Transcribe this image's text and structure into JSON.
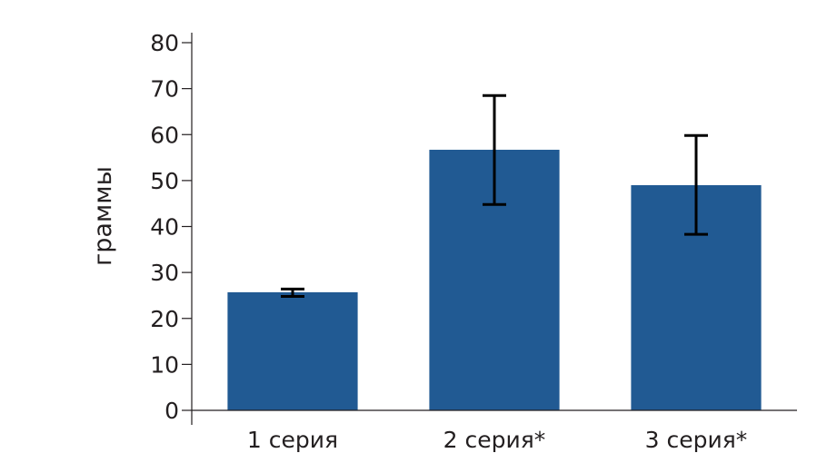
{
  "chart_data": {
    "type": "bar",
    "title": "",
    "xlabel": "",
    "ylabel": "граммы",
    "ylim": [
      0,
      80
    ],
    "yticks": [
      0,
      10,
      20,
      30,
      40,
      50,
      60,
      70,
      80
    ],
    "grid": false,
    "categories": [
      "1 серия",
      "2 серия*",
      "3 серия*"
    ],
    "values": [
      25.7,
      56.7,
      49.0
    ],
    "error_low": [
      24.8,
      44.8,
      38.3
    ],
    "error_high": [
      26.4,
      68.5,
      59.8
    ],
    "bar_color": "#215a93",
    "error_color": "#000000"
  }
}
